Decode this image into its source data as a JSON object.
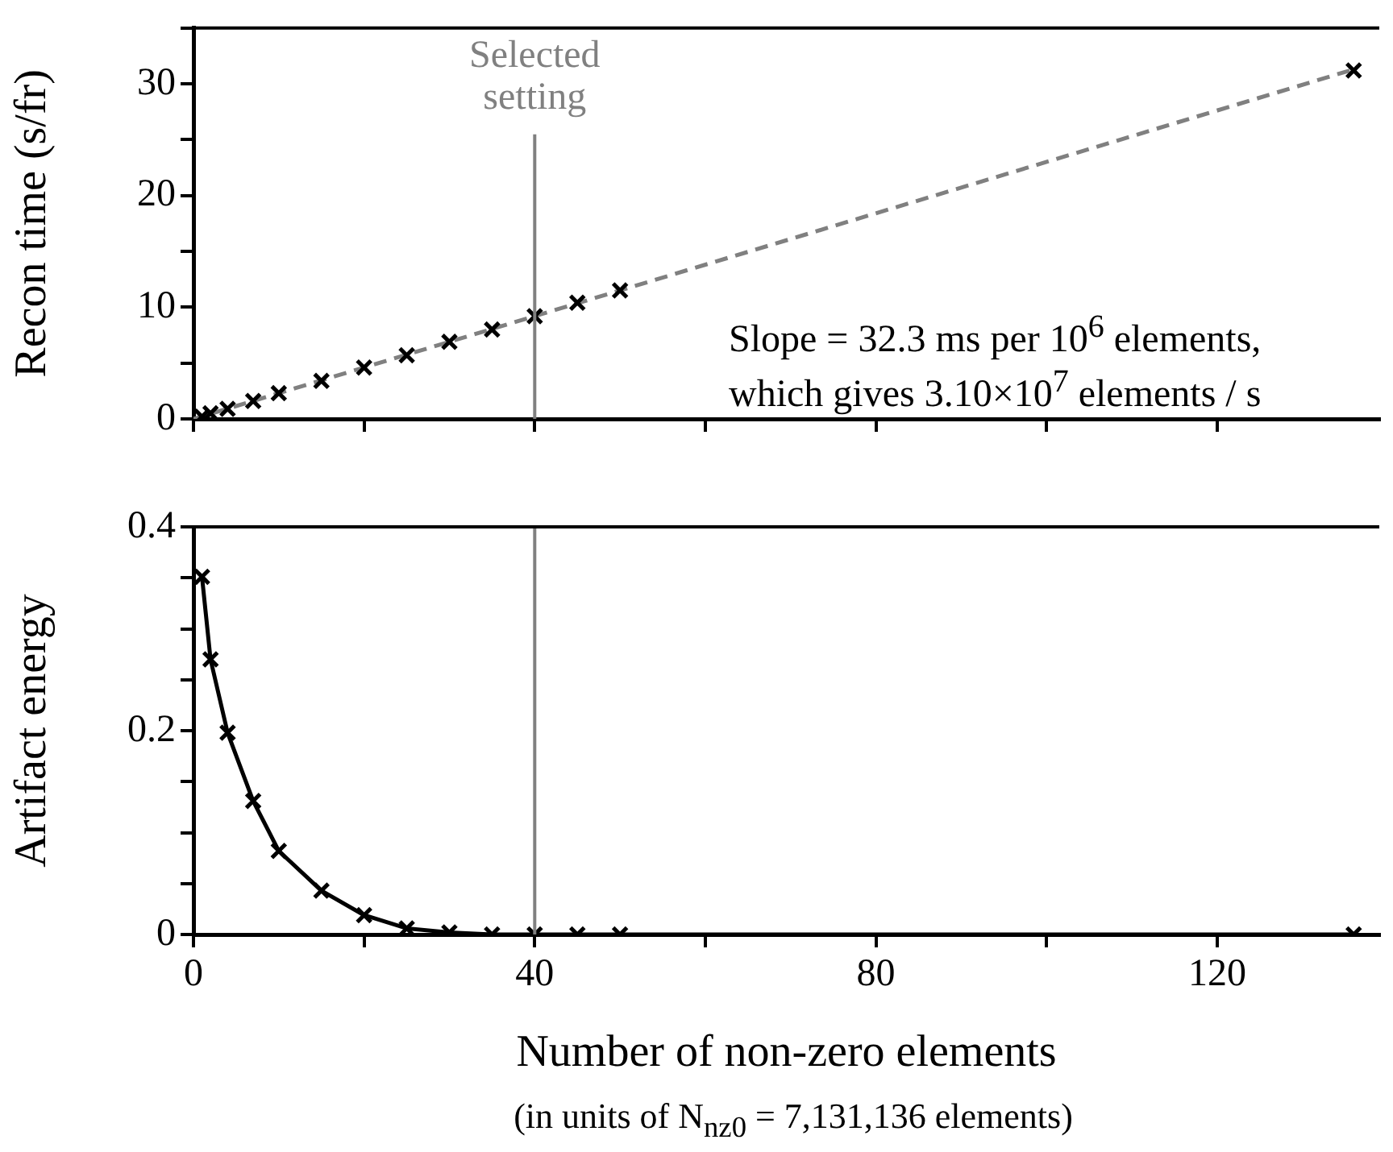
{
  "chart_data": [
    {
      "type": "scatter",
      "ylabel": "Recon time (s/fr)",
      "x": [
        1,
        2,
        4,
        7,
        10,
        15,
        20,
        25,
        30,
        35,
        40,
        45,
        50,
        136
      ],
      "xlim": [
        0,
        139
      ],
      "xticks": [
        0,
        {
          "value": 20,
          "label": null
        },
        40,
        {
          "value": 60,
          "label": null
        },
        80,
        {
          "value": 100,
          "label": null
        },
        120
      ],
      "ylim": [
        0,
        35
      ],
      "yticks": [
        0,
        {
          "value": 5,
          "label": null
        },
        10,
        {
          "value": 15,
          "label": null
        },
        20,
        {
          "value": 25,
          "label": null
        },
        30,
        {
          "value": 35,
          "label": null
        }
      ],
      "tick_labels": "y",
      "series": [
        {
          "color": "#000000",
          "marker": "cross",
          "values": [
            0.2,
            0.5,
            0.9,
            1.6,
            2.3,
            3.4,
            4.6,
            5.7,
            6.9,
            8.0,
            9.2,
            10.4,
            11.5,
            31.2
          ]
        },
        {
          "type": "line",
          "color": "#808080",
          "line_style": "dashed",
          "marker": "none",
          "x": [
            0,
            136
          ],
          "values": [
            0,
            31.3
          ]
        }
      ],
      "ref_lines": [
        {
          "axis": "x",
          "value": 40,
          "label": "Selected setting",
          "color": "#808080"
        }
      ],
      "annotations": [
        "Slope =  32.3 ms per 10$^{6}$ elements,",
        "which gives 3.10×10$^{7}$ elements / s"
      ]
    },
    {
      "type": "line",
      "ylabel": "Artifact energy",
      "xlabel": "Number of non-zero elements",
      "x": [
        1,
        2,
        4,
        7,
        10,
        15,
        20,
        25,
        30,
        35,
        40,
        45,
        50,
        136
      ],
      "xlim": [
        0,
        139
      ],
      "xticks": [
        0,
        {
          "value": 20,
          "label": null
        },
        40,
        {
          "value": 60,
          "label": null
        },
        80,
        {
          "value": 100,
          "label": null
        },
        120
      ],
      "ylim": [
        0,
        0.4
      ],
      "yticks": [
        0,
        {
          "value": 0.05,
          "label": null
        },
        {
          "value": 0.1,
          "label": null
        },
        {
          "value": 0.15,
          "label": null
        },
        0.2,
        {
          "value": 0.25,
          "label": null
        },
        {
          "value": 0.3,
          "label": null
        },
        {
          "value": 0.35,
          "label": null
        },
        0.4
      ],
      "series": [
        {
          "color": "#000000",
          "marker": "cross",
          "line_style": "solid",
          "values": [
            0.351,
            0.27,
            0.198,
            0.131,
            0.082,
            0.043,
            0.019,
            0.006,
            0.002,
            0,
            0,
            0,
            0,
            0
          ]
        }
      ],
      "ref_lines": [
        {
          "axis": "x",
          "value": 40,
          "color": "#808080"
        }
      ],
      "annotations": [
        "(in units of N$_{nz0}$ = 7,131,136 elements)"
      ]
    }
  ]
}
